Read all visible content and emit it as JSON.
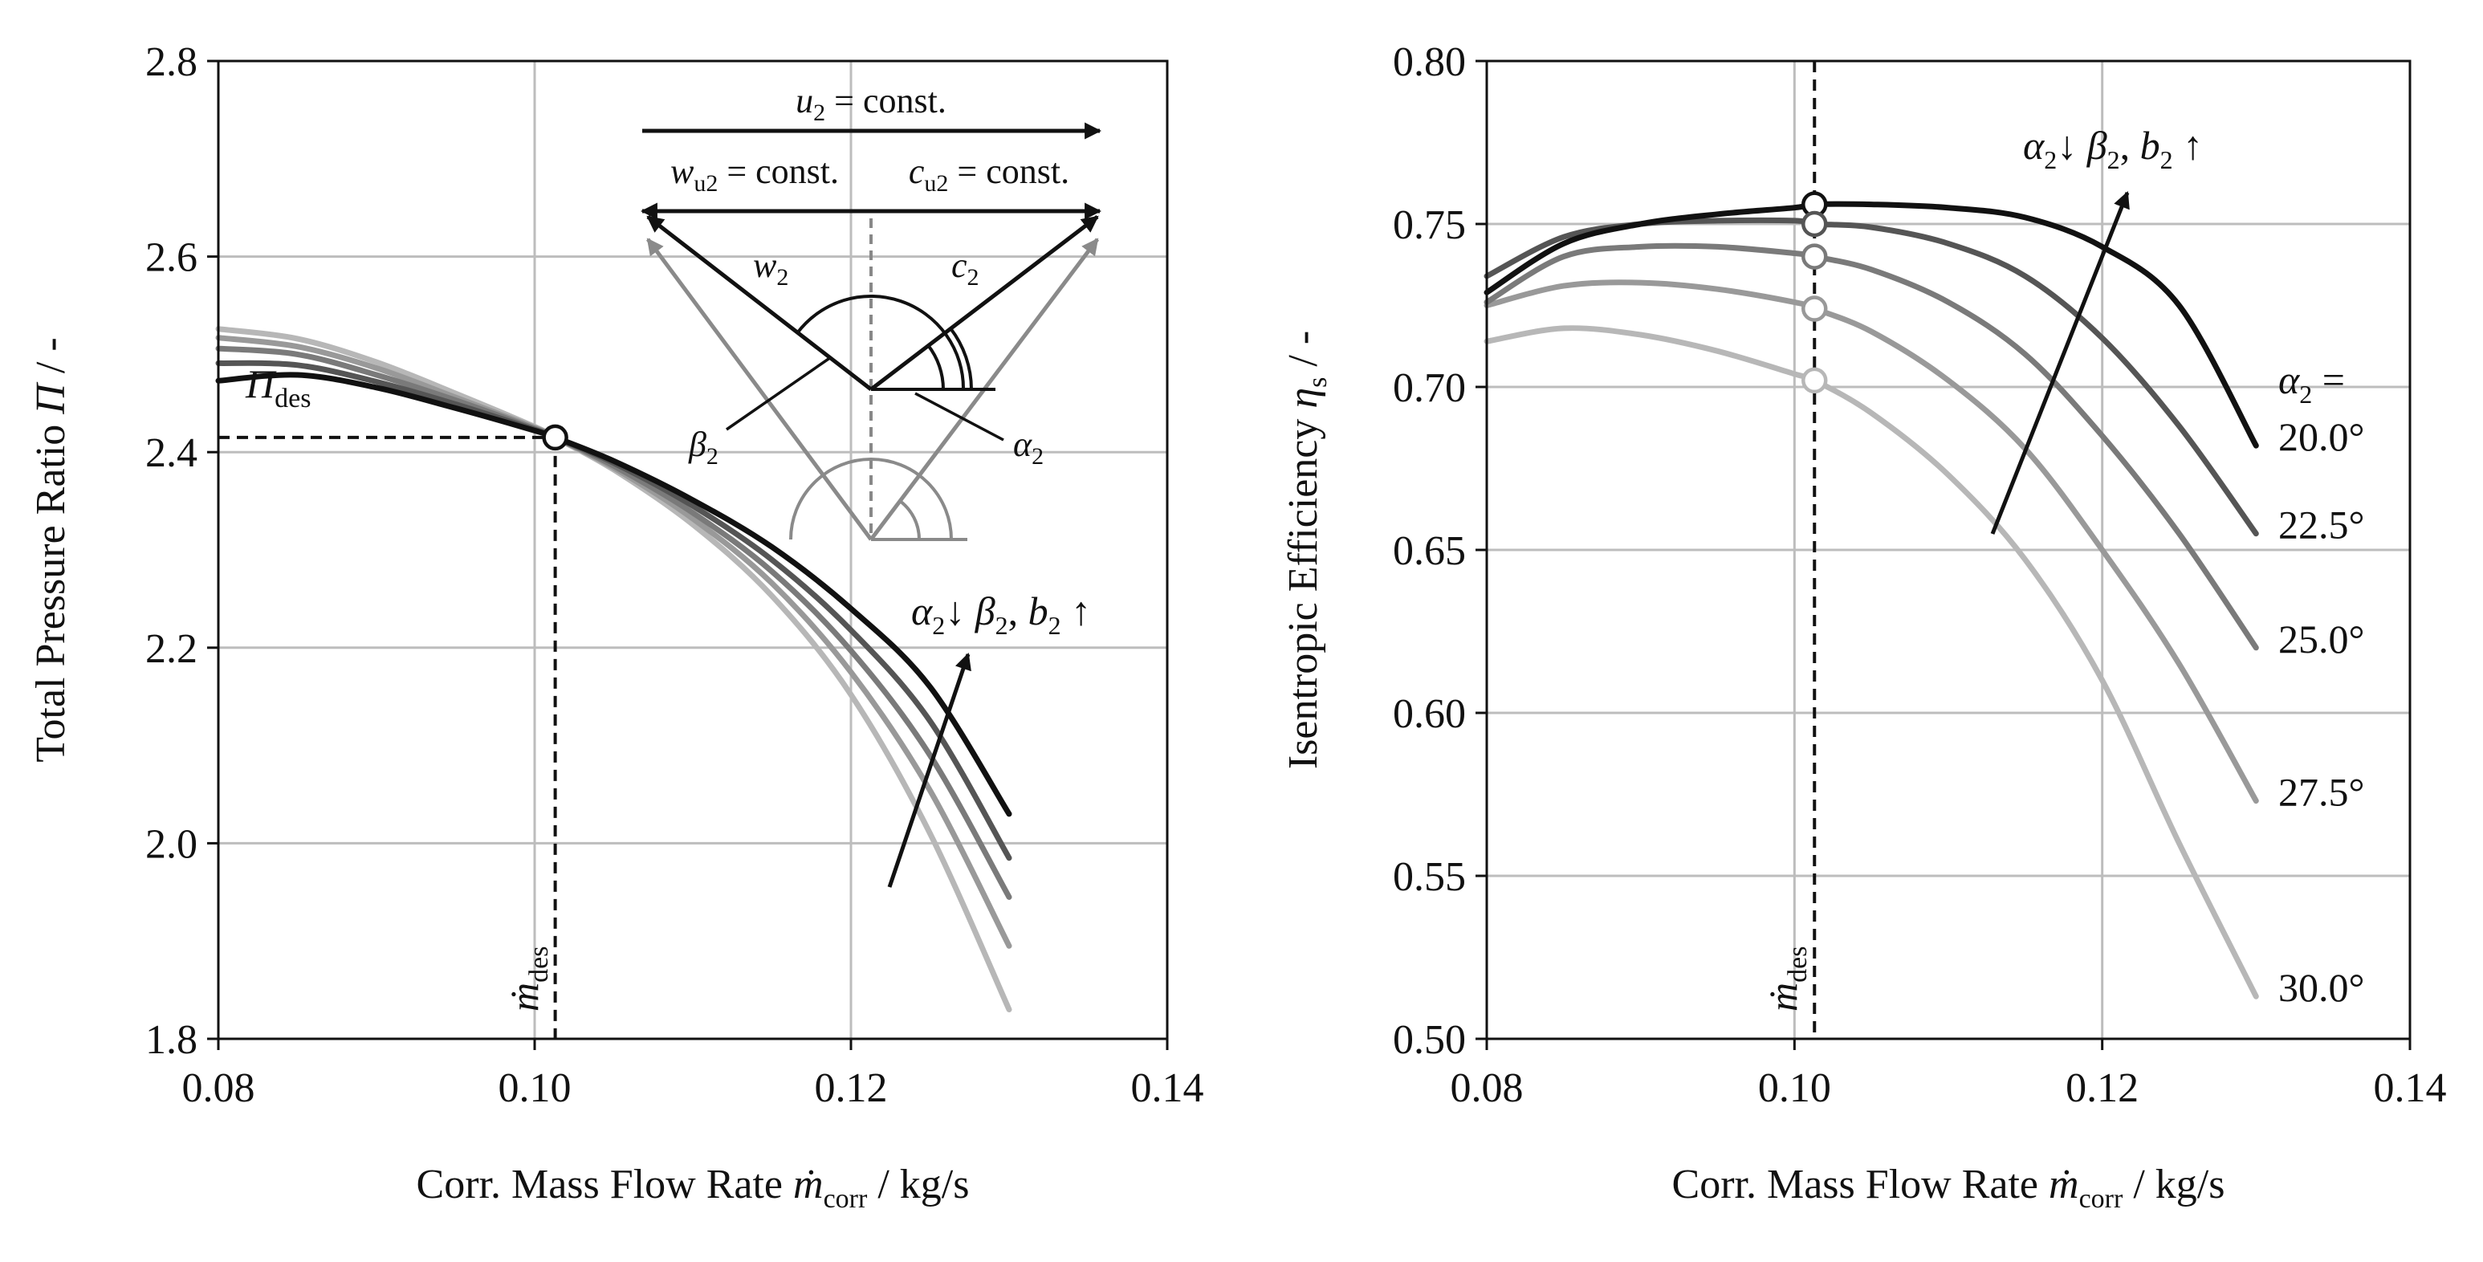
{
  "colors": {
    "series": [
      "#111111",
      "#555555",
      "#7a7a7a",
      "#999999",
      "#b7b7b7"
    ],
    "grid": "#bdbdbd",
    "axis": "#111111"
  },
  "chart_data": [
    {
      "type": "line",
      "title": "",
      "xlabel": "Corr. Mass Flow Rate ṁcorr / kg/s",
      "xlabel_parts": {
        "pre": "Corr. Mass Flow Rate ",
        "sym": "ṁ",
        "sub": "corr",
        "post": " / kg/s"
      },
      "ylabel": "Total Pressure Ratio Π / -",
      "ylabel_parts": {
        "pre": "Total Pressure Ratio ",
        "sym": "Π",
        "post": " / -"
      },
      "xlim": [
        0.08,
        0.14
      ],
      "ylim": [
        1.8,
        2.8
      ],
      "xticks": [
        "0.08",
        "0.10",
        "0.12",
        "0.14"
      ],
      "yticks": [
        "1.8",
        "2.0",
        "2.2",
        "2.4",
        "2.6",
        "2.8"
      ],
      "design_point": {
        "x": 0.1013,
        "y": 2.415
      },
      "design_labels": {
        "pi_sym": "Π",
        "pi_sub": "des",
        "m_sym": "ṁ",
        "m_sub": "des"
      },
      "trend_label": {
        "a": "α",
        "a_sub": "2",
        "down": "↓ ",
        "b": "β",
        "b_sub": "2",
        "sep": ", ",
        "c": "b",
        "c_sub": "2",
        "up": " ↑"
      },
      "series": [
        {
          "name": "α2 = 20.0°",
          "x": [
            0.08,
            0.085,
            0.09,
            0.095,
            0.1,
            0.1013,
            0.105,
            0.11,
            0.115,
            0.12,
            0.125,
            0.13
          ],
          "y": [
            2.473,
            2.479,
            2.466,
            2.445,
            2.422,
            2.415,
            2.391,
            2.351,
            2.303,
            2.24,
            2.16,
            2.03
          ]
        },
        {
          "name": "α2 = 22.5°",
          "x": [
            0.08,
            0.085,
            0.09,
            0.095,
            0.1,
            0.1013,
            0.105,
            0.11,
            0.115,
            0.12,
            0.125,
            0.13
          ],
          "y": [
            2.491,
            2.489,
            2.472,
            2.449,
            2.423,
            2.415,
            2.389,
            2.345,
            2.29,
            2.218,
            2.125,
            1.985
          ]
        },
        {
          "name": "α2 = 25.0°",
          "x": [
            0.08,
            0.085,
            0.09,
            0.095,
            0.1,
            0.1013,
            0.105,
            0.11,
            0.115,
            0.12,
            0.125,
            0.13
          ],
          "y": [
            2.506,
            2.5,
            2.479,
            2.453,
            2.424,
            2.415,
            2.386,
            2.338,
            2.278,
            2.197,
            2.09,
            1.945
          ]
        },
        {
          "name": "α2 = 27.5°",
          "x": [
            0.08,
            0.085,
            0.09,
            0.095,
            0.1,
            0.1013,
            0.105,
            0.11,
            0.115,
            0.12,
            0.125,
            0.13
          ],
          "y": [
            2.517,
            2.508,
            2.486,
            2.456,
            2.425,
            2.415,
            2.384,
            2.332,
            2.266,
            2.175,
            2.054,
            1.895
          ]
        },
        {
          "name": "α2 = 30.0°",
          "x": [
            0.08,
            0.085,
            0.09,
            0.095,
            0.1,
            0.1013,
            0.105,
            0.11,
            0.115,
            0.12,
            0.125,
            0.13
          ],
          "y": [
            2.526,
            2.516,
            2.492,
            2.46,
            2.426,
            2.415,
            2.382,
            2.326,
            2.253,
            2.152,
            2.01,
            1.83
          ]
        }
      ],
      "inset": {
        "u2_label": {
          "sym": "u",
          "sub": "2",
          "text": " = const."
        },
        "wu2_label": {
          "sym": "w",
          "sub": "u2",
          "text": " = const."
        },
        "cu2_label": {
          "sym": "c",
          "sub": "u2",
          "text": " = const."
        },
        "w2_label": {
          "sym": "w",
          "sub": "2"
        },
        "c2_label": {
          "sym": "c",
          "sub": "2"
        },
        "beta2_label": {
          "sym": "β",
          "sub": "2"
        },
        "alpha2_label": {
          "sym": "α",
          "sub": "2"
        }
      }
    },
    {
      "type": "line",
      "title": "",
      "xlabel": "Corr. Mass Flow Rate ṁcorr / kg/s",
      "xlabel_parts": {
        "pre": "Corr. Mass Flow Rate ",
        "sym": "ṁ",
        "sub": "corr",
        "post": " / kg/s"
      },
      "ylabel": "Isentropic Efficiency ηs / -",
      "ylabel_parts": {
        "pre": "Isentropic Efficiency ",
        "sym": "η",
        "sub": "s",
        "post": " / -"
      },
      "xlim": [
        0.08,
        0.14
      ],
      "ylim": [
        0.5,
        0.8
      ],
      "xticks": [
        "0.08",
        "0.10",
        "0.12",
        "0.14"
      ],
      "yticks": [
        "0.50",
        "0.55",
        "0.60",
        "0.65",
        "0.70",
        "0.75",
        "0.80"
      ],
      "design_x": 0.1013,
      "design_labels": {
        "m_sym": "ṁ",
        "m_sub": "des"
      },
      "trend_label": {
        "a": "α",
        "a_sub": "2",
        "down": "↓ ",
        "b": "β",
        "b_sub": "2",
        "sep": ", ",
        "c": "b",
        "c_sub": "2",
        "up": " ↑"
      },
      "legend_header": {
        "sym": "α",
        "sub": "2",
        "text": " ="
      },
      "series": [
        {
          "name": "α2 = 20.0°",
          "label": "20.0°",
          "x": [
            0.08,
            0.085,
            0.09,
            0.095,
            0.1,
            0.1013,
            0.105,
            0.11,
            0.115,
            0.12,
            0.125,
            0.13
          ],
          "y": [
            0.729,
            0.744,
            0.75,
            0.753,
            0.755,
            0.756,
            0.756,
            0.755,
            0.752,
            0.743,
            0.725,
            0.682
          ],
          "marker": 0.756
        },
        {
          "name": "α2 = 22.5°",
          "label": "22.5°",
          "x": [
            0.08,
            0.085,
            0.09,
            0.095,
            0.1,
            0.1013,
            0.105,
            0.11,
            0.115,
            0.12,
            0.125,
            0.13
          ],
          "y": [
            0.734,
            0.746,
            0.75,
            0.751,
            0.751,
            0.75,
            0.749,
            0.744,
            0.734,
            0.715,
            0.688,
            0.655
          ]
        },
        {
          "name": "α2 = 25.0°",
          "label": "25.0°",
          "x": [
            0.08,
            0.085,
            0.09,
            0.095,
            0.1,
            0.1013,
            0.105,
            0.11,
            0.115,
            0.12,
            0.125,
            0.13
          ],
          "y": [
            0.726,
            0.74,
            0.743,
            0.743,
            0.741,
            0.74,
            0.736,
            0.726,
            0.71,
            0.685,
            0.655,
            0.62
          ]
        },
        {
          "name": "α2 = 27.5°",
          "label": "27.5°",
          "x": [
            0.08,
            0.085,
            0.09,
            0.095,
            0.1,
            0.1013,
            0.105,
            0.11,
            0.115,
            0.12,
            0.125,
            0.13
          ],
          "y": [
            0.725,
            0.731,
            0.732,
            0.73,
            0.726,
            0.724,
            0.717,
            0.702,
            0.681,
            0.65,
            0.615,
            0.573
          ]
        },
        {
          "name": "α2 = 30.0°",
          "label": "30.0°",
          "x": [
            0.08,
            0.085,
            0.09,
            0.095,
            0.1,
            0.1013,
            0.105,
            0.11,
            0.115,
            0.12,
            0.125,
            0.13
          ],
          "y": [
            0.714,
            0.718,
            0.716,
            0.711,
            0.704,
            0.702,
            0.692,
            0.673,
            0.647,
            0.61,
            0.56,
            0.513
          ]
        }
      ]
    }
  ]
}
